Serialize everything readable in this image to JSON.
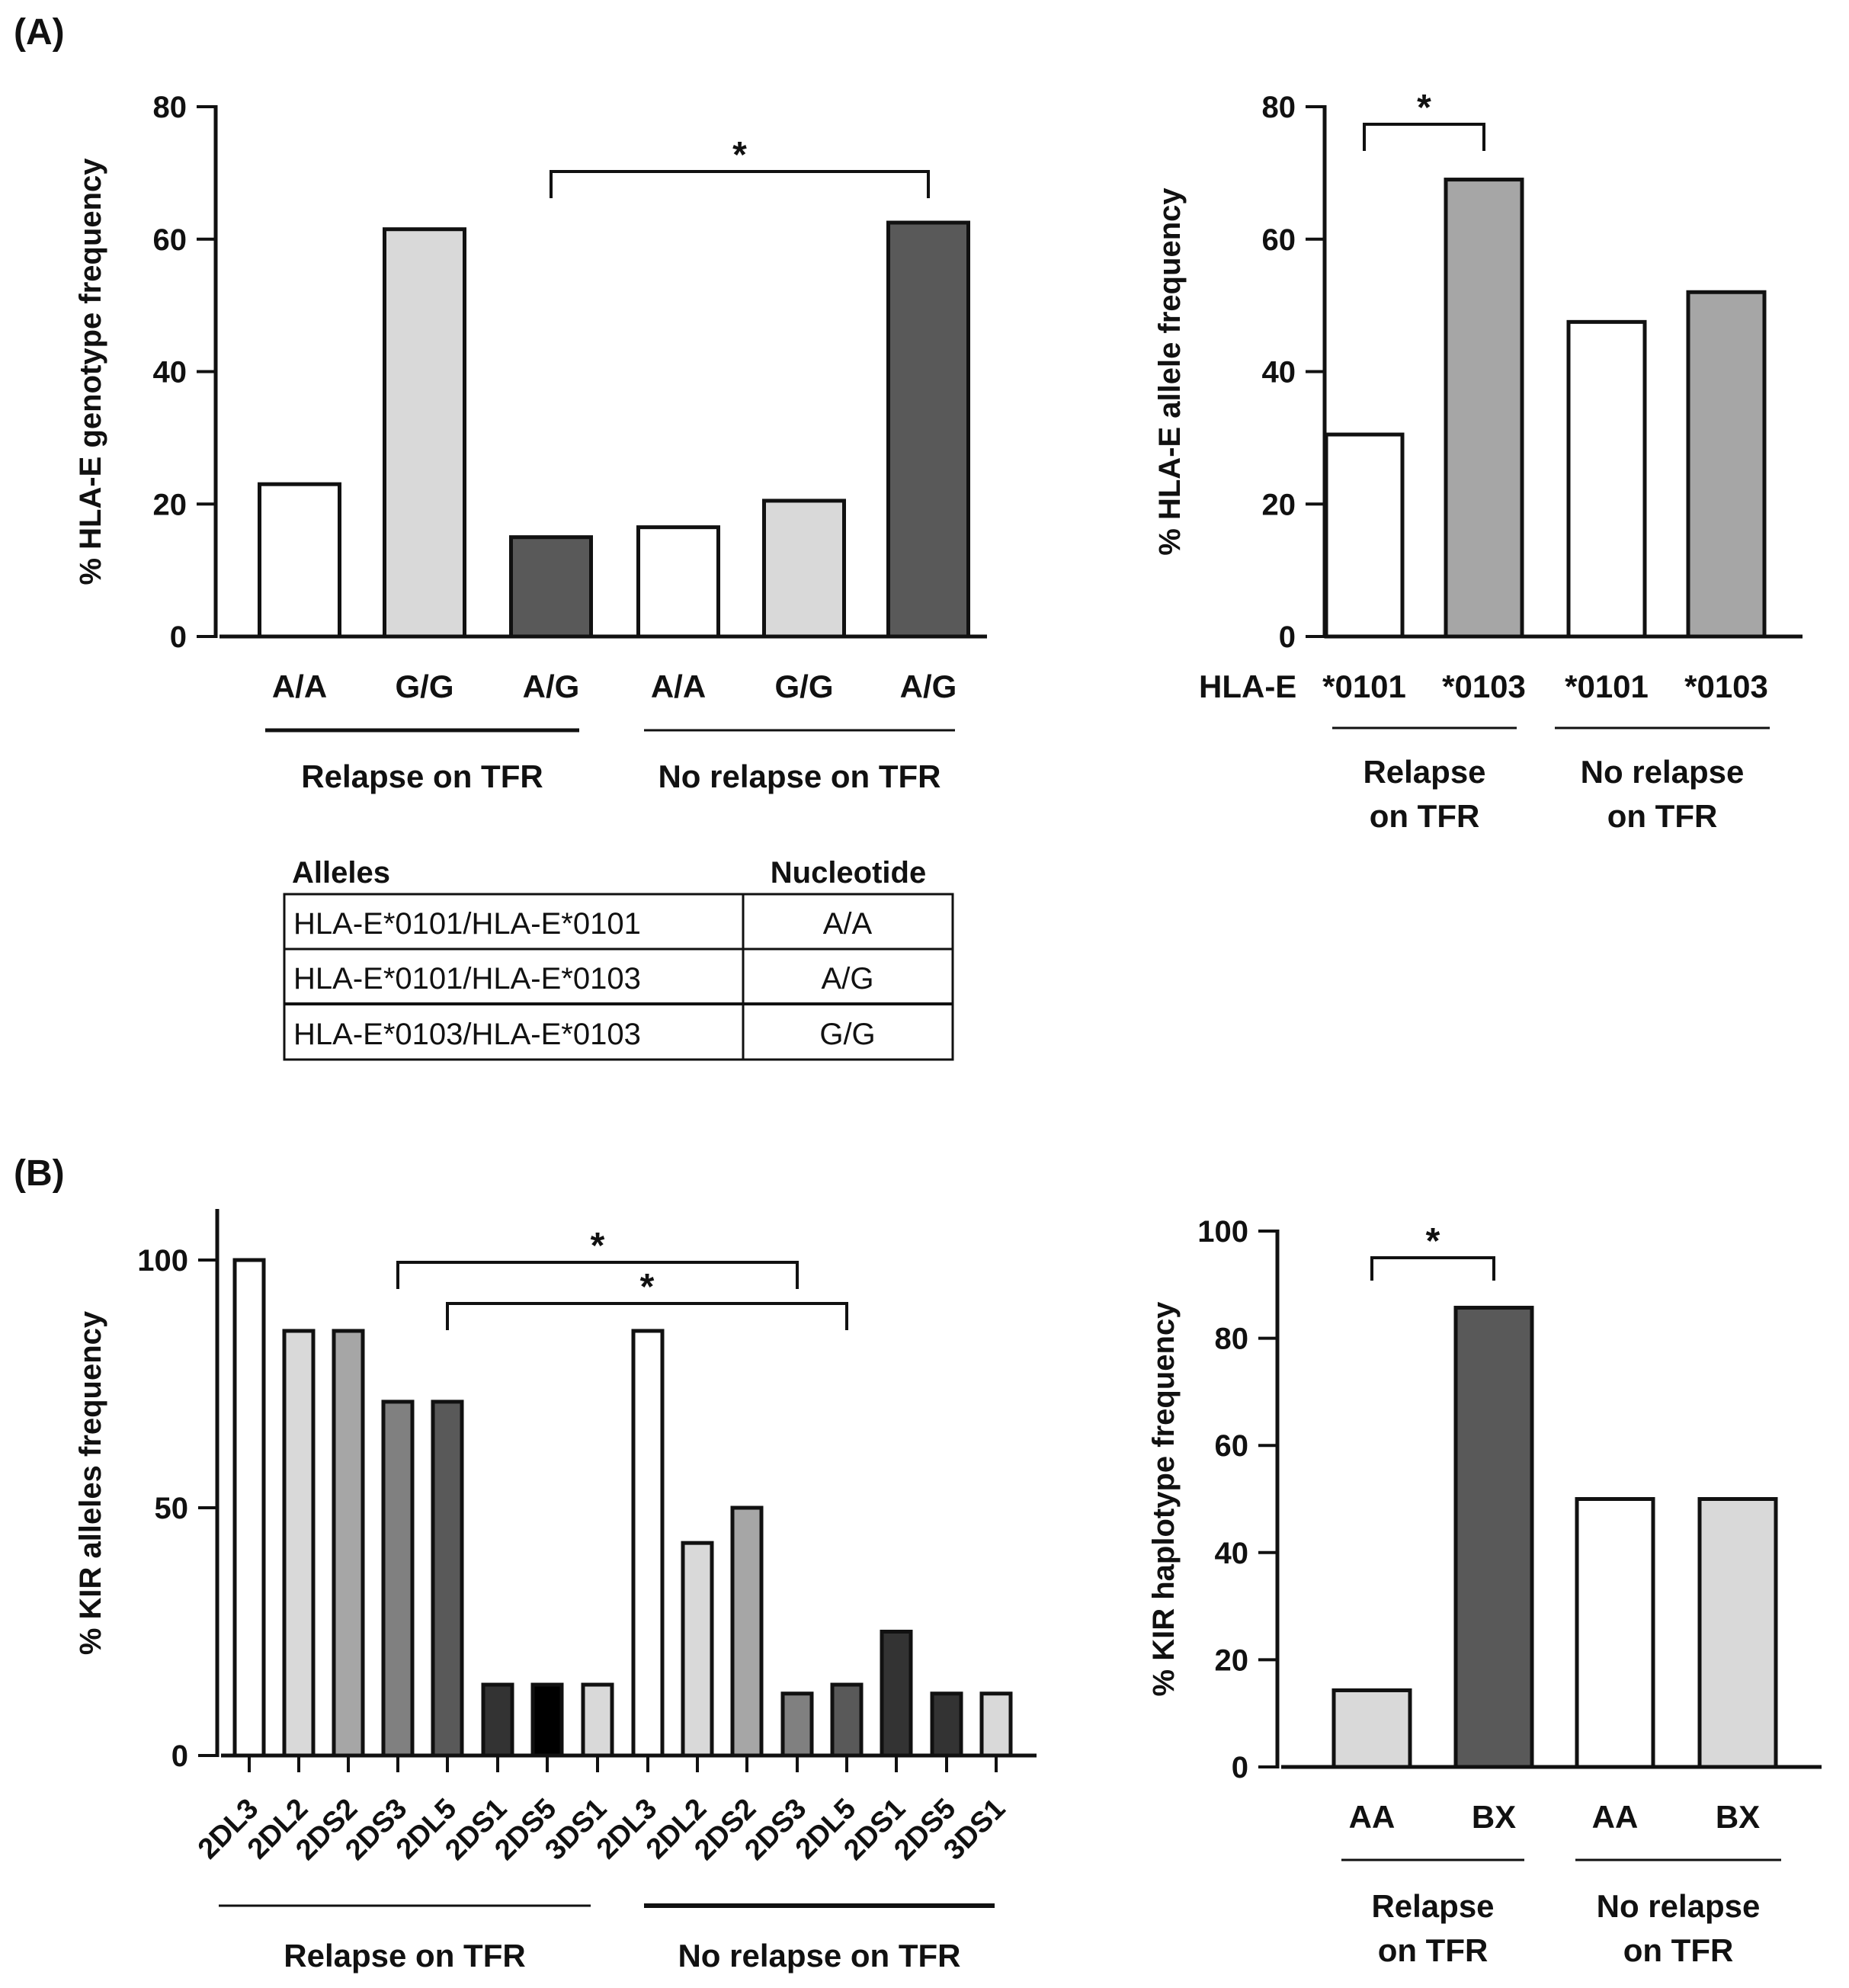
{
  "panels": {
    "A": "(A)",
    "B": "(B)"
  },
  "chart_data": [
    {
      "id": "A1",
      "type": "bar",
      "ylabel": "% HLA-E genotype frequency",
      "ylim": [
        0,
        80
      ],
      "yticks": [
        0,
        20,
        40,
        60,
        80
      ],
      "categories": [
        "A/A",
        "G/G",
        "A/G",
        "A/A",
        "G/G",
        "A/G"
      ],
      "values": [
        23,
        61.5,
        15,
        16.5,
        20.5,
        62.5
      ],
      "colors": [
        "#ffffff",
        "#d9d9d9",
        "#595959",
        "#ffffff",
        "#d9d9d9",
        "#595959"
      ],
      "groups": [
        {
          "label": "Relapse on TFR",
          "from": 0,
          "to": 2
        },
        {
          "label": "No relapse on TFR",
          "from": 3,
          "to": 5
        }
      ],
      "significance": [
        {
          "from": 2,
          "to": 5,
          "label": "*"
        }
      ]
    },
    {
      "id": "A2",
      "type": "bar",
      "ylabel": "% HLA-E allele frequency",
      "ylim": [
        0,
        80
      ],
      "yticks": [
        0,
        20,
        40,
        60,
        80
      ],
      "axis_prefix": "HLA-E",
      "categories": [
        "*0101",
        "*0103",
        "*0101",
        "*0103"
      ],
      "values": [
        30.5,
        69,
        47.5,
        52
      ],
      "colors": [
        "#ffffff",
        "#a6a6a6",
        "#ffffff",
        "#a6a6a6"
      ],
      "groups": [
        {
          "label": "Relapse\non TFR",
          "from": 0,
          "to": 1
        },
        {
          "label": "No relapse\non TFR",
          "from": 2,
          "to": 3
        }
      ],
      "significance": [
        {
          "from": 0,
          "to": 1,
          "label": "*"
        }
      ]
    },
    {
      "id": "B1",
      "type": "bar",
      "ylabel": "% KIR alleles frequency",
      "ylim": [
        0,
        110
      ],
      "yticks": [
        0,
        50,
        100
      ],
      "categories": [
        "2DL3",
        "2DL2",
        "2DS2",
        "2DS3",
        "2DL5",
        "2DS1",
        "2DS5",
        "3DS1",
        "2DL3",
        "2DL2",
        "2DS2",
        "2DS3",
        "2DL5",
        "2DS1",
        "2DS5",
        "3DS1"
      ],
      "values": [
        100,
        85.7,
        85.7,
        71.4,
        71.4,
        14.3,
        14.3,
        14.3,
        85.7,
        42.9,
        50,
        12.5,
        14.3,
        25,
        12.5,
        12.5
      ],
      "colors": [
        "#ffffff",
        "#d9d9d9",
        "#a6a6a6",
        "#808080",
        "#595959",
        "#333333",
        "#000000",
        "#d9d9d9",
        "#ffffff",
        "#d9d9d9",
        "#a6a6a6",
        "#808080",
        "#595959",
        "#333333",
        "#333333",
        "#d9d9d9"
      ],
      "groups": [
        {
          "label": "Relapse on TFR",
          "from": 0,
          "to": 7
        },
        {
          "label": "No relapse on TFR",
          "from": 8,
          "to": 15
        }
      ],
      "significance": [
        {
          "from": 3,
          "to": 11,
          "label": "*"
        },
        {
          "from": 4,
          "to": 12,
          "label": "*"
        }
      ]
    },
    {
      "id": "B2",
      "type": "bar",
      "ylabel": "% KIR haplotype frequency",
      "ylim": [
        0,
        100
      ],
      "yticks": [
        0,
        20,
        40,
        60,
        80,
        100
      ],
      "categories": [
        "AA",
        "BX",
        "AA",
        "BX"
      ],
      "values": [
        14.3,
        85.7,
        50,
        50
      ],
      "colors": [
        "#d9d9d9",
        "#595959",
        "#ffffff",
        "#d9d9d9"
      ],
      "groups": [
        {
          "label": "Relapse\non TFR",
          "from": 0,
          "to": 1
        },
        {
          "label": "No relapse\non TFR",
          "from": 2,
          "to": 3
        }
      ],
      "significance": [
        {
          "from": 0,
          "to": 1,
          "label": "*"
        }
      ]
    }
  ],
  "table": {
    "headers": [
      "Alleles",
      "Nucleotide"
    ],
    "rows": [
      [
        "HLA-E*0101/HLA-E*0101",
        "A/A"
      ],
      [
        "HLA-E*0101/HLA-E*0103",
        "A/G"
      ],
      [
        "HLA-E*0103/HLA-E*0103",
        "G/G"
      ]
    ]
  }
}
